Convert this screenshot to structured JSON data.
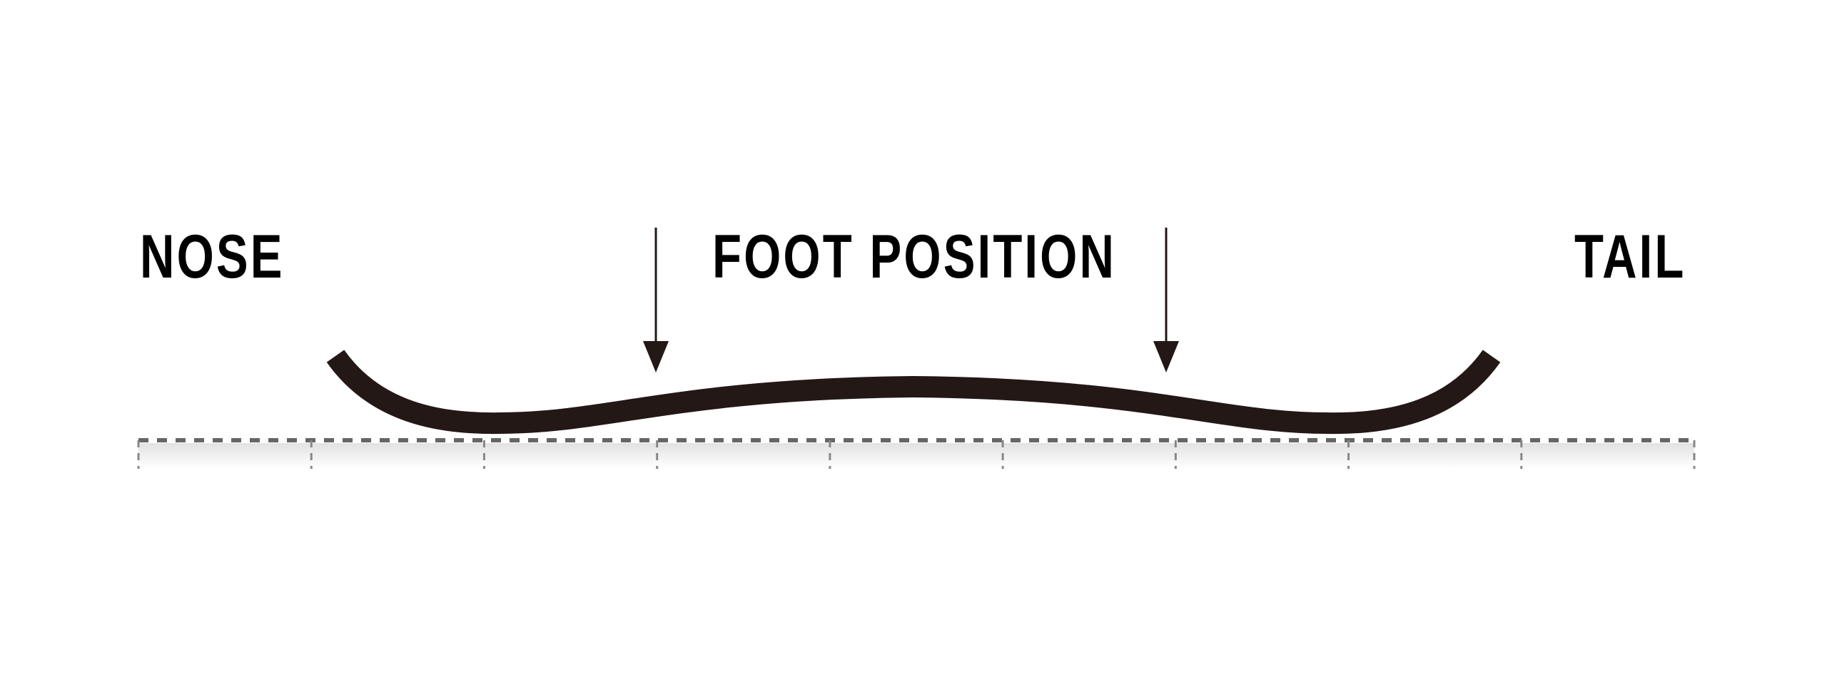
{
  "labels": {
    "nose": "NOSE",
    "foot_position": "FOOT POSITION",
    "tail": "TAIL"
  },
  "colors": {
    "board_profile": "#231815",
    "arrow": "#231815",
    "text": "#000000",
    "ground_dash": "#666666",
    "ground_tick": "#888888",
    "ground_gradient_top": "#e6e6e6",
    "ground_gradient_bottom": "#ffffff"
  },
  "ground": {
    "segments": 9
  }
}
